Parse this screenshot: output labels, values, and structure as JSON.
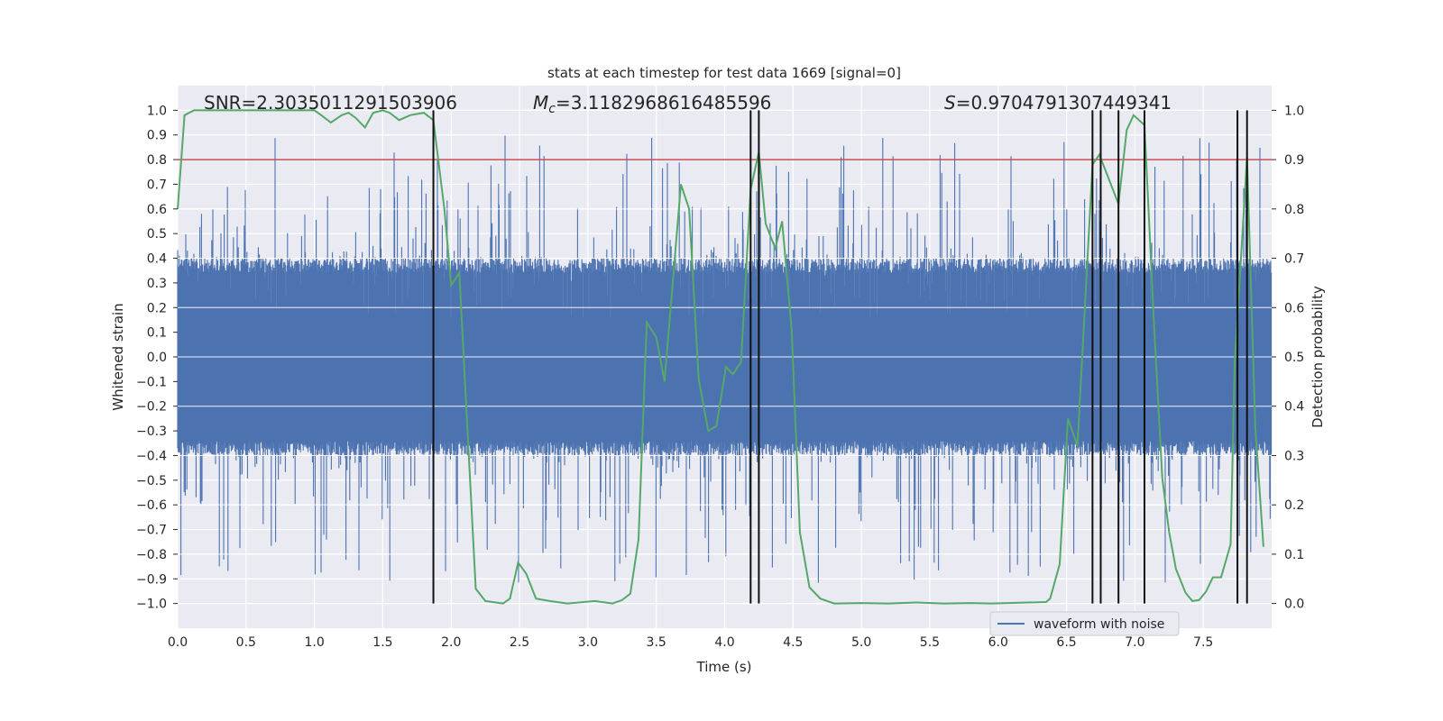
{
  "chart_data": {
    "type": "line",
    "title": "stats at each timestep for test data 1669 [signal=0]",
    "xlabel": "Time (s)",
    "ylabel": "Whitened strain",
    "ylabel_right": "Detection probability",
    "xlim": [
      0,
      8
    ],
    "ylim": [
      -1.1,
      1.1
    ],
    "ylim_right": [
      -0.05,
      1.05
    ],
    "xticks": [
      "0.0",
      "0.5",
      "1.0",
      "1.5",
      "2.0",
      "2.5",
      "3.0",
      "3.5",
      "4.0",
      "4.5",
      "5.0",
      "5.5",
      "6.0",
      "6.5",
      "7.0",
      "7.5"
    ],
    "yticks": [
      "1.0",
      "0.9",
      "0.8",
      "0.7",
      "0.6",
      "0.5",
      "0.4",
      "0.3",
      "0.2",
      "0.1",
      "0.0",
      "−0.1",
      "−0.2",
      "−0.3",
      "−0.4",
      "−0.5",
      "−0.6",
      "−0.7",
      "−0.8",
      "−0.9",
      "−1.0"
    ],
    "yticks_right": [
      "1.0",
      "0.9",
      "0.8",
      "0.7",
      "0.6",
      "0.5",
      "0.4",
      "0.3",
      "0.2",
      "0.1",
      "0.0"
    ],
    "grid": true,
    "annotations": {
      "snr": "SNR=2.3035011291503906",
      "mc_prefix": "M",
      "mc_sub": "c",
      "mc_value": "=3.1182968616485596",
      "s_prefix": "S",
      "s_value": "=0.9704791307449341"
    },
    "legend": {
      "placement": "lower-right",
      "entries": [
        "waveform with noise"
      ]
    },
    "threshold": {
      "detection_probability": 0.9,
      "color": "#C44E52"
    },
    "trigger_times": [
      1.87,
      4.19,
      4.25,
      6.69,
      6.75,
      6.88,
      7.07,
      7.75,
      7.82
    ],
    "series": [
      {
        "name": "waveform with noise",
        "axis": "left",
        "color": "#4C72B0",
        "description_range": [
          -1.0,
          1.0
        ],
        "typical_amplitude": 0.4
      },
      {
        "name": "detection probability",
        "axis": "right",
        "color": "#55A868",
        "x": [
          0.0,
          0.05,
          0.12,
          1.0,
          1.05,
          1.12,
          1.2,
          1.25,
          1.3,
          1.37,
          1.43,
          1.5,
          1.55,
          1.62,
          1.7,
          1.8,
          1.87,
          1.95,
          2.0,
          2.06,
          2.18,
          2.25,
          2.38,
          2.43,
          2.49,
          2.55,
          2.62,
          2.72,
          2.85,
          3.05,
          3.18,
          3.25,
          3.31,
          3.37,
          3.43,
          3.5,
          3.56,
          3.68,
          3.74,
          3.81,
          3.88,
          3.94,
          4.01,
          4.06,
          4.12,
          4.19,
          4.25,
          4.3,
          4.37,
          4.42,
          4.49,
          4.55,
          4.62,
          4.7,
          4.8,
          5.0,
          5.2,
          5.4,
          5.6,
          5.8,
          5.95,
          6.35,
          6.38,
          6.45,
          6.51,
          6.58,
          6.69,
          6.74,
          6.88,
          6.94,
          6.99,
          7.07,
          7.14,
          7.2,
          7.25,
          7.3,
          7.37,
          7.42,
          7.47,
          7.52,
          7.57,
          7.63,
          7.7,
          7.73,
          7.82,
          7.88,
          7.94
        ],
        "y": [
          0.8,
          0.99,
          1.0,
          1.0,
          0.99,
          0.975,
          0.99,
          0.995,
          0.985,
          0.965,
          0.995,
          1.0,
          0.995,
          0.98,
          0.99,
          0.995,
          0.98,
          0.8,
          0.645,
          0.67,
          0.03,
          0.005,
          0.0,
          0.01,
          0.083,
          0.06,
          0.01,
          0.005,
          0.0,
          0.005,
          0.0,
          0.007,
          0.02,
          0.13,
          0.57,
          0.54,
          0.45,
          0.85,
          0.8,
          0.455,
          0.35,
          0.36,
          0.48,
          0.465,
          0.49,
          0.84,
          0.915,
          0.77,
          0.72,
          0.775,
          0.555,
          0.145,
          0.033,
          0.01,
          0.0,
          0.001,
          0.0,
          0.002,
          0.0,
          0.001,
          0.0,
          0.003,
          0.01,
          0.08,
          0.375,
          0.32,
          0.89,
          0.91,
          0.81,
          0.96,
          0.99,
          0.97,
          0.565,
          0.255,
          0.145,
          0.07,
          0.022,
          0.005,
          0.007,
          0.024,
          0.053,
          0.053,
          0.12,
          0.49,
          0.905,
          0.36,
          0.115
        ]
      }
    ]
  }
}
